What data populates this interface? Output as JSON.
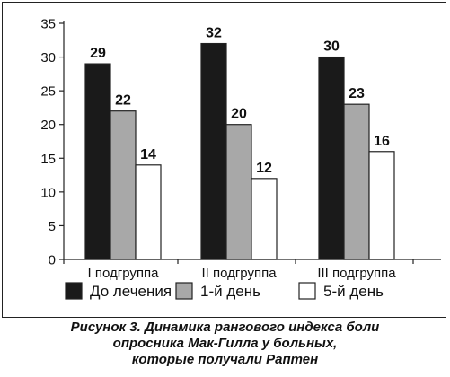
{
  "chart_data": {
    "type": "bar",
    "categories": [
      "I подгруппа",
      "II подгруппа",
      "III подгруппа"
    ],
    "series": [
      {
        "name": "До лечения",
        "values": [
          29,
          32,
          30
        ],
        "color": "#1a1a1a"
      },
      {
        "name": "1-й день",
        "values": [
          22,
          20,
          23
        ],
        "color": "#a8a8a8"
      },
      {
        "name": "5-й день",
        "values": [
          14,
          12,
          16
        ],
        "color": "#ffffff"
      }
    ],
    "yticks": [
      0,
      5,
      10,
      15,
      20,
      25,
      30,
      35
    ],
    "ylim": [
      0,
      35
    ],
    "legend_position": "bottom",
    "grid": false,
    "data_labels": true
  },
  "caption": {
    "lines": [
      "Рисунок 3.  Динамика рангового индекса боли",
      "опросника Мак-Гилла у больных,",
      "которые получали Раптен"
    ]
  }
}
